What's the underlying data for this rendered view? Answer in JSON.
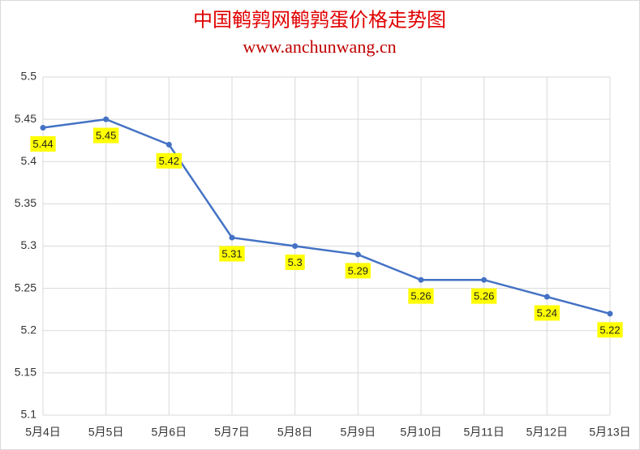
{
  "chart_data": {
    "type": "line",
    "title": "中国鹌鹑网鹌鹑蛋价格走势图",
    "subtitle": "www.anchunwang.cn",
    "categories": [
      "5月4日",
      "5月5日",
      "5月6日",
      "5月7日",
      "5月8日",
      "5月9日",
      "5月10日",
      "5月11日",
      "5月12日",
      "5月13日"
    ],
    "values": [
      5.44,
      5.45,
      5.42,
      5.31,
      5.3,
      5.29,
      5.26,
      5.26,
      5.24,
      5.22
    ],
    "color": "#4472c4",
    "label_color": "#ffff00",
    "ylim": [
      5.1,
      5.5
    ],
    "yticks": [
      5.1,
      5.15,
      5.2,
      5.25,
      5.3,
      5.35,
      5.4,
      5.45,
      5.5
    ],
    "grid": true
  }
}
